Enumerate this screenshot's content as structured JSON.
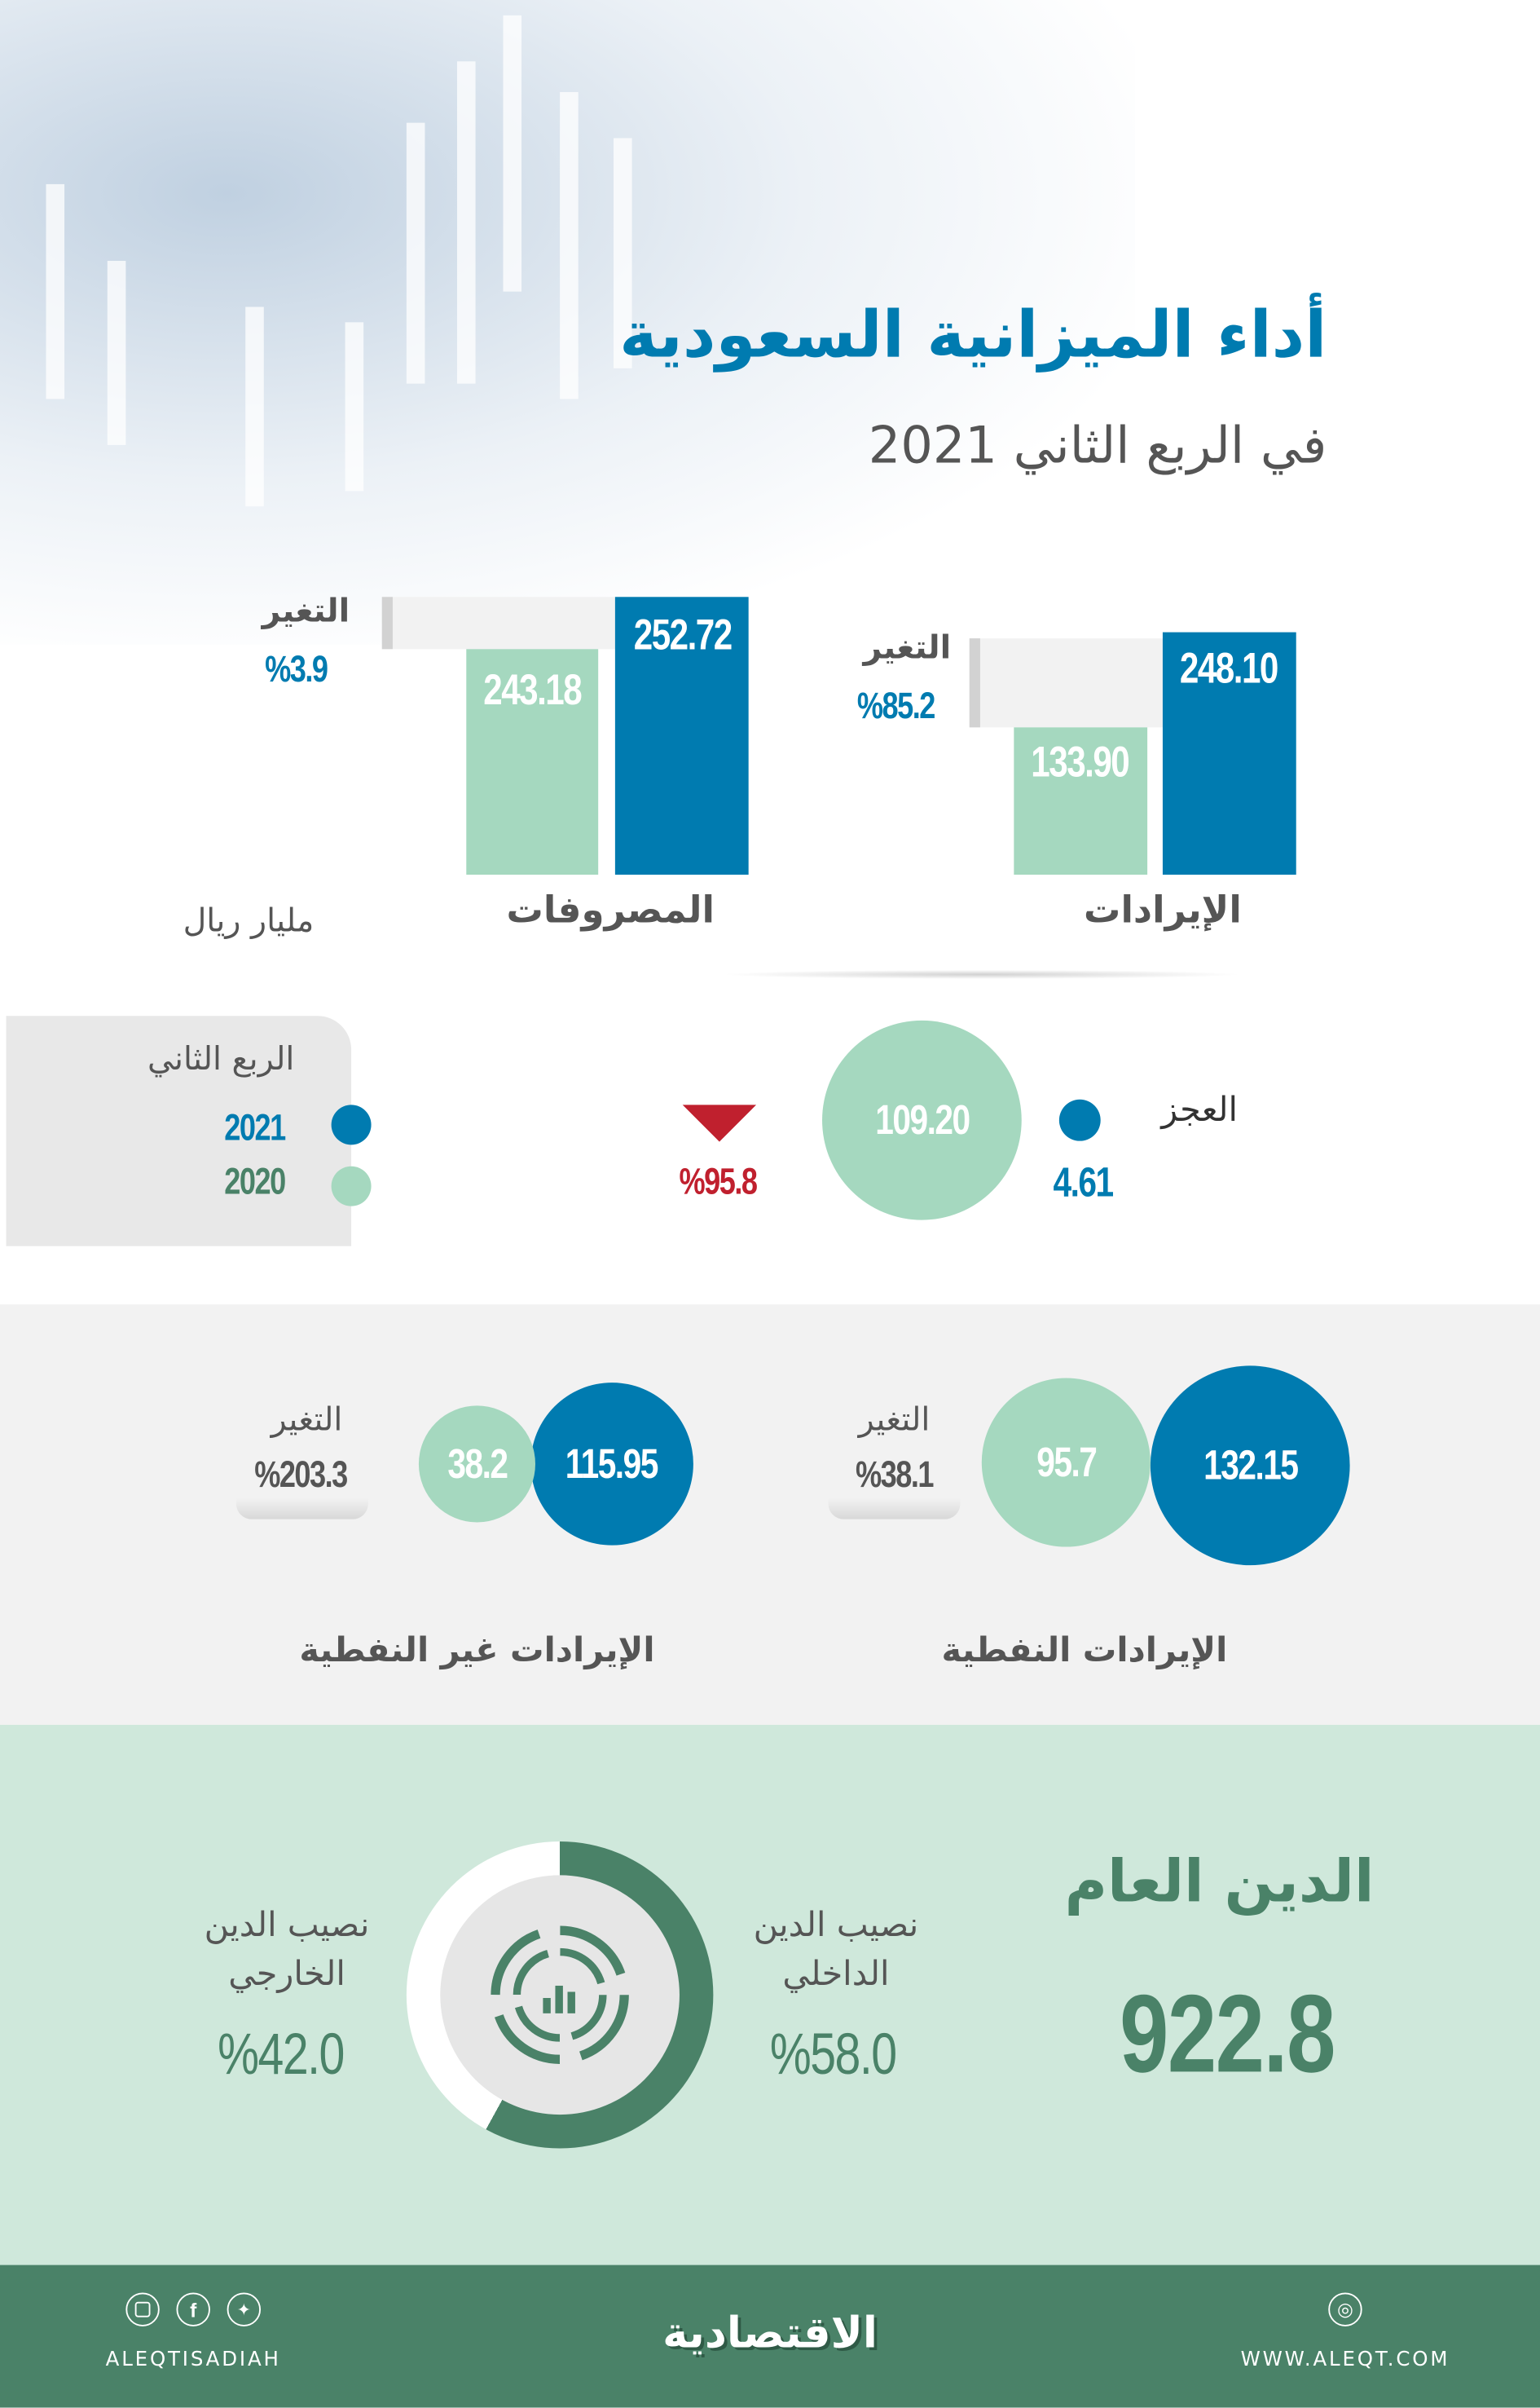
{
  "header": {
    "title": "أداء الميزانية السعودية",
    "subtitle": "في الربع الثاني 2021"
  },
  "colors": {
    "q2_2021": "#007bb0",
    "q2_2020": "#a5d8bf",
    "decrease": "#c0202e",
    "debt": "#4a8268",
    "mint_bg": "#cfe8db"
  },
  "chart_data": {
    "type": "bar",
    "categories": [
      "الإيرادات",
      "المصروفات"
    ],
    "series": [
      {
        "name": "2021",
        "values": [
          248.1,
          252.72
        ]
      },
      {
        "name": "2020",
        "values": [
          133.9,
          243.18
        ]
      }
    ],
    "change_label": "التغير",
    "changes": [
      "%85.2",
      "%3.9"
    ],
    "unit": "مليار ريال"
  },
  "bars": {
    "revenue": {
      "label": "الإيرادات",
      "v2021": "248.10",
      "v2020": "133.90",
      "change_label": "التغير",
      "change": "%85.2"
    },
    "expenses": {
      "label": "المصروفات",
      "v2021": "252.72",
      "v2020": "243.18",
      "change_label": "التغير",
      "change": "%3.9"
    },
    "unit": "مليار ريال"
  },
  "legend": {
    "title": "الربع الثاني",
    "items": [
      {
        "label": "2021"
      },
      {
        "label": "2020"
      }
    ]
  },
  "deficit": {
    "label": "العجز",
    "v2021": "4.61",
    "v2020": "109.20",
    "change": "%95.8",
    "direction": "down"
  },
  "oil": {
    "label": "الإيرادات النفطية",
    "v2021": "132.15",
    "v2020": "95.7",
    "change_label": "التغير",
    "change": "%38.1"
  },
  "non_oil": {
    "label": "الإيرادات غير النفطية",
    "v2021": "115.95",
    "v2020": "38.2",
    "change_label": "التغير",
    "change": "%203.3"
  },
  "debt": {
    "title": "الدين العام",
    "total": "922.8",
    "domestic_label_1": "نصيب الدين",
    "domestic_label_2": "الداخلي",
    "domestic_share": "%58.0",
    "domestic_pct": 58,
    "external_label_1": "نصيب الدين",
    "external_label_2": "الخارجي",
    "external_share": "%42.0"
  },
  "footer": {
    "handle": "ALEQTISADIAH",
    "logo": "الاقتصادية",
    "website": "WWW.ALEQT.COM",
    "icons": [
      "instagram-icon",
      "facebook-icon",
      "twitter-icon",
      "dribbble-icon"
    ]
  }
}
